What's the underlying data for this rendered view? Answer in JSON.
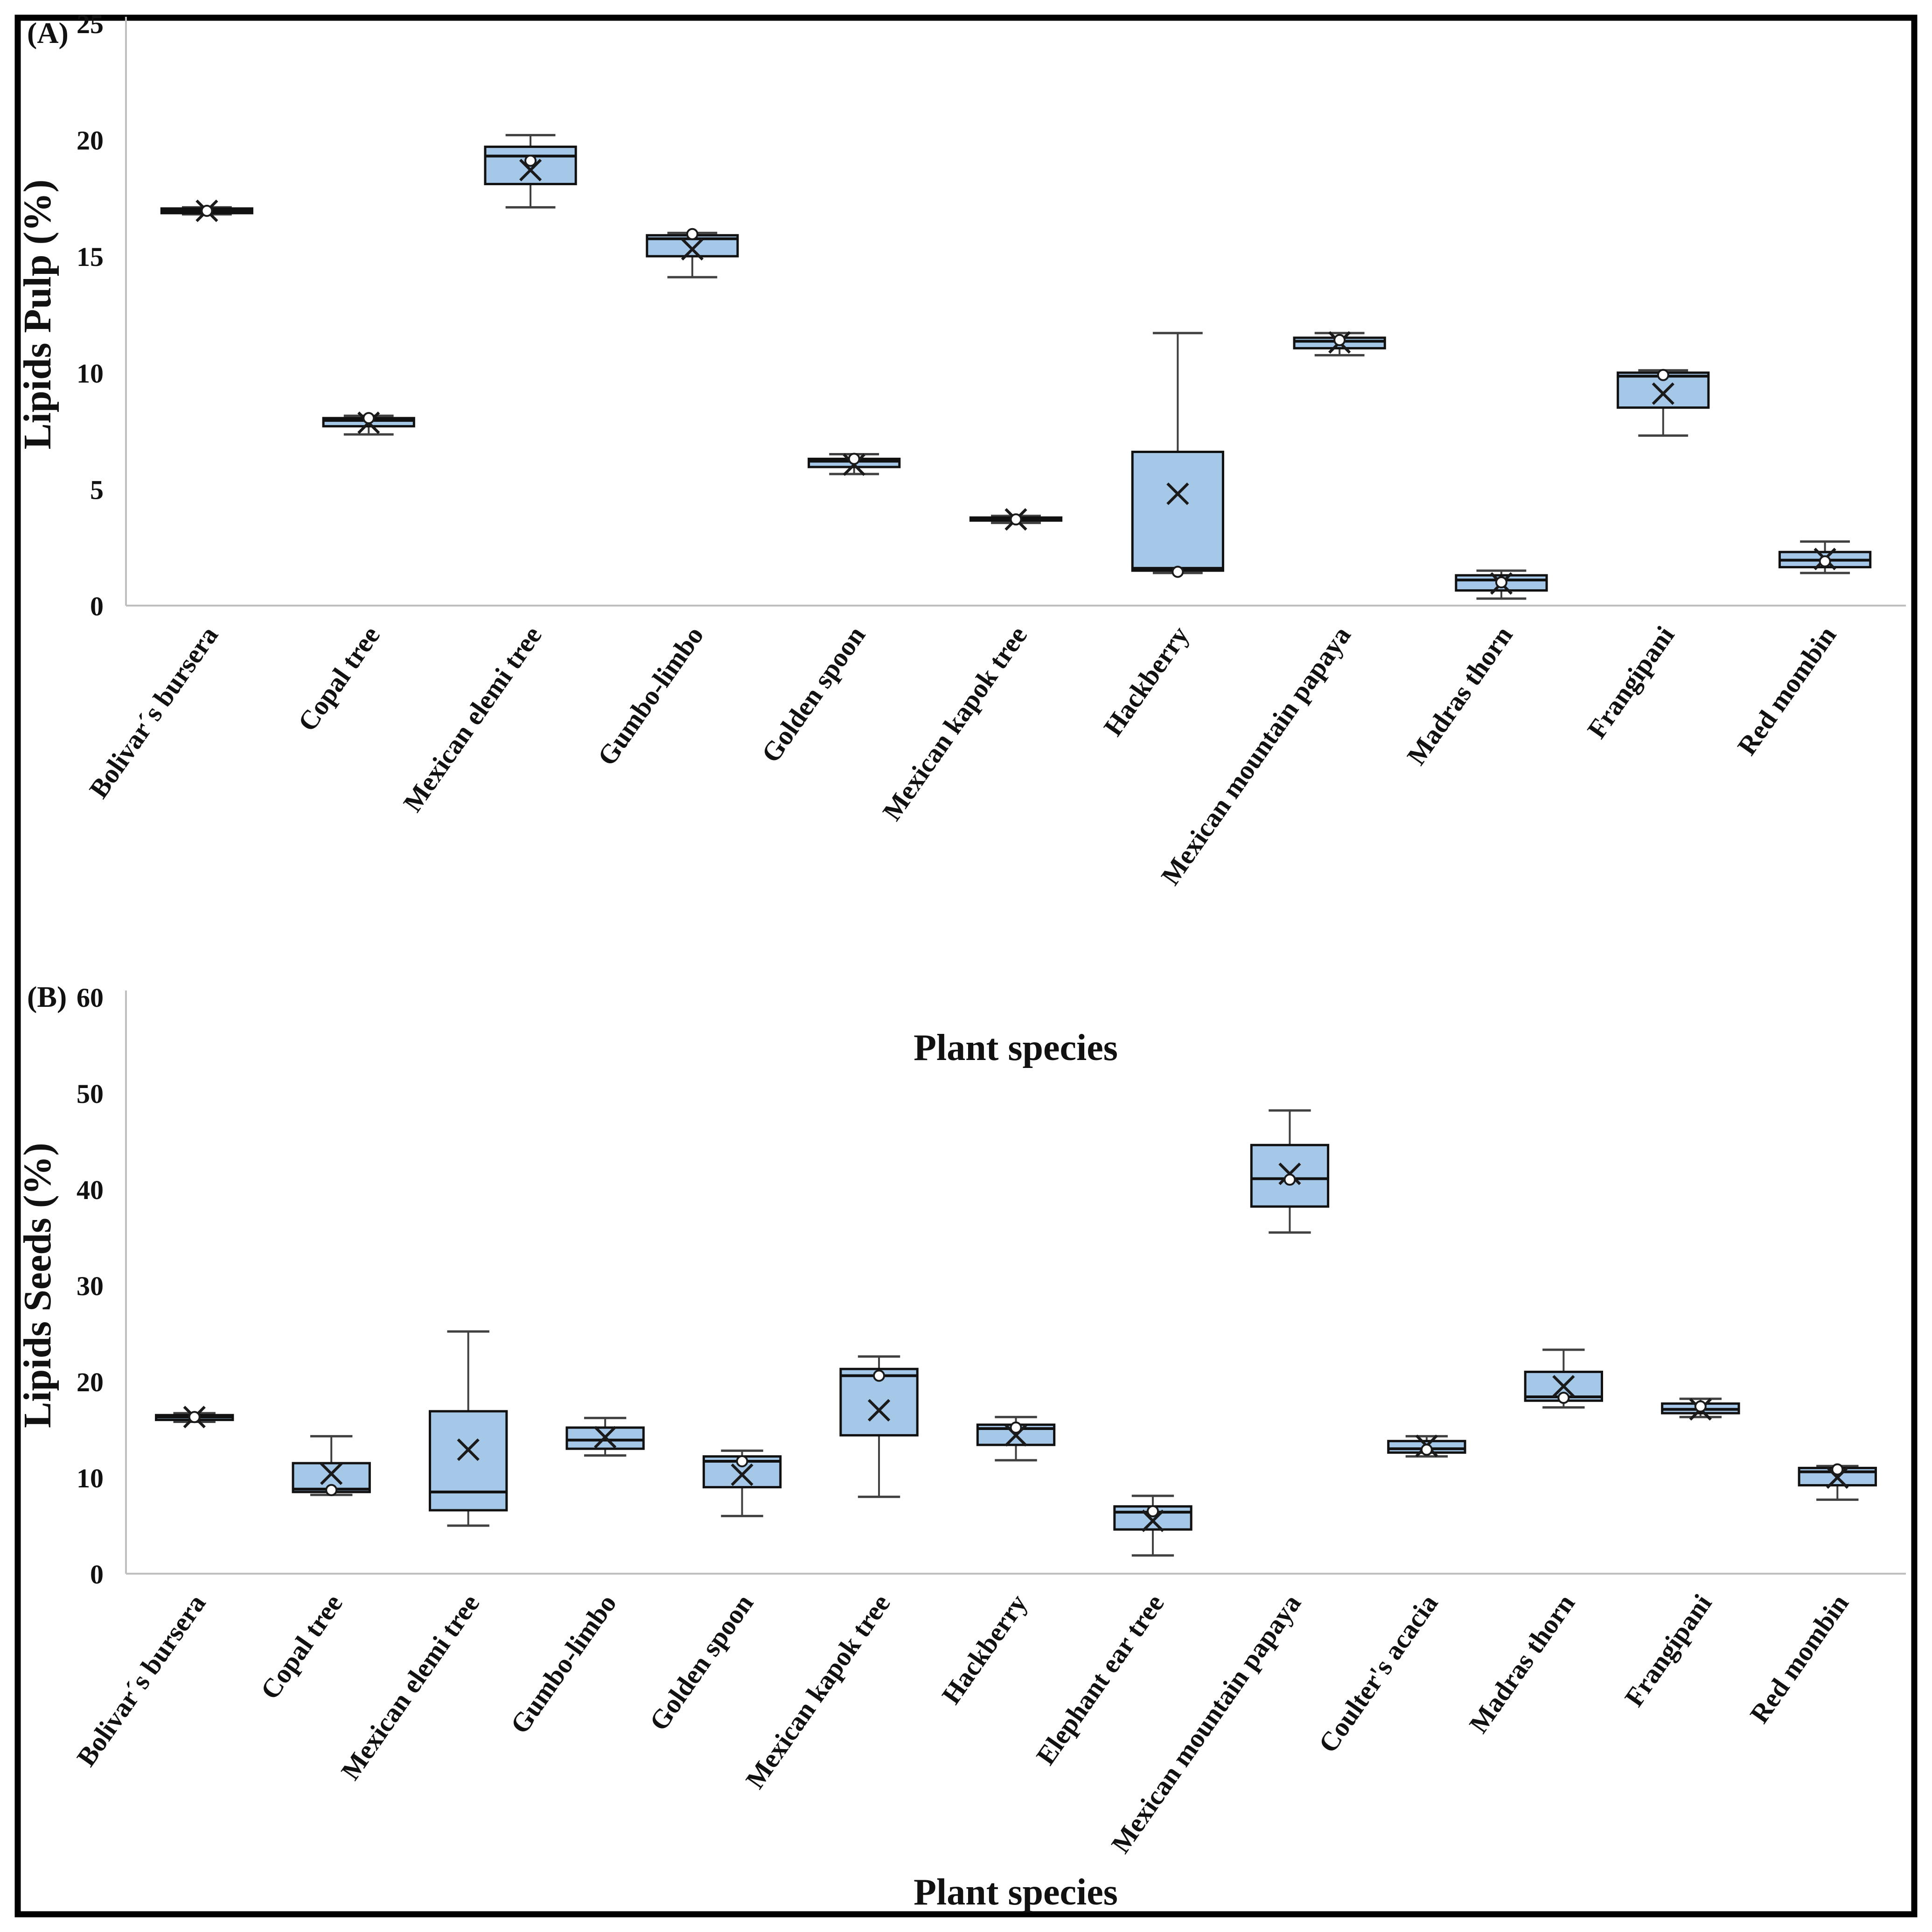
{
  "style": {
    "box_fill": "#A5C8E9",
    "box_stroke": "#111111",
    "median_color": "#111111",
    "whisker_color": "#404040",
    "axis_color": "#BFBFBF",
    "mean_marker_color": "#1a1a1a",
    "outlier_fill": "#ffffff",
    "background": "#ffffff",
    "frame_color": "#000000"
  },
  "chart_data": [
    {
      "type": "box",
      "panel_label": "(A)",
      "ylabel": "Lipids Pulp (%)",
      "xlabel": "Plant species",
      "ylim": [
        0,
        25
      ],
      "yticks": [
        0,
        5,
        10,
        15,
        20,
        25
      ],
      "grid": "off",
      "legend": "none",
      "categories": [
        "Bolivar´s bursera",
        "Copal tree",
        "Mexican elemi tree",
        "Gumbo-limbo",
        "Golden spoon",
        "Mexican kapok tree",
        "Hackberry",
        "Mexican mountain papaya",
        "Madras thorn",
        "Frangipani",
        "Red mombin"
      ],
      "stats": [
        {
          "min": 16.8,
          "q1": 16.85,
          "med": 16.95,
          "q3": 17.05,
          "max": 17.1,
          "mean": 16.95,
          "out": 16.95
        },
        {
          "min": 7.35,
          "q1": 7.7,
          "med": 7.95,
          "q3": 8.05,
          "max": 8.15,
          "mean": 7.85,
          "out": 8.05
        },
        {
          "min": 17.1,
          "q1": 18.1,
          "med": 19.3,
          "q3": 19.7,
          "max": 20.2,
          "mean": 18.7,
          "out": 19.1
        },
        {
          "min": 14.1,
          "q1": 15.0,
          "med": 15.75,
          "q3": 15.9,
          "max": 16.0,
          "mean": 15.3,
          "out": 15.95
        },
        {
          "min": 5.65,
          "q1": 5.95,
          "med": 6.2,
          "q3": 6.3,
          "max": 6.5,
          "mean": 6.05,
          "out": 6.3
        },
        {
          "min": 3.55,
          "q1": 3.65,
          "med": 3.7,
          "q3": 3.78,
          "max": 3.85,
          "mean": 3.7,
          "out": 3.7
        },
        {
          "min": 1.4,
          "q1": 1.5,
          "med": 1.6,
          "q3": 6.6,
          "max": 11.7,
          "mean": 4.8,
          "out": 1.45
        },
        {
          "min": 10.75,
          "q1": 11.05,
          "med": 11.35,
          "q3": 11.5,
          "max": 11.7,
          "mean": 11.3,
          "out": 11.4
        },
        {
          "min": 0.3,
          "q1": 0.65,
          "med": 1.1,
          "q3": 1.3,
          "max": 1.5,
          "mean": 0.95,
          "out": 1.0
        },
        {
          "min": 7.3,
          "q1": 8.5,
          "med": 9.85,
          "q3": 10.0,
          "max": 10.1,
          "mean": 9.1,
          "out": 9.9
        },
        {
          "min": 1.4,
          "q1": 1.65,
          "med": 1.95,
          "q3": 2.3,
          "max": 2.75,
          "mean": 2.0,
          "out": 1.9
        }
      ]
    },
    {
      "type": "box",
      "panel_label": "(B)",
      "ylabel": "Lipids Seeds (%)",
      "xlabel": "Plant species",
      "ylim": [
        0,
        60
      ],
      "yticks": [
        0,
        10,
        20,
        30,
        40,
        50,
        60
      ],
      "grid": "off",
      "legend": "none",
      "categories": [
        "Bolivar´s bursera",
        "Copal tree",
        "Mexican elemi tree",
        "Gumbo-limbo",
        "Golden spoon",
        "Mexican kapok tree",
        "Hackberry",
        "Elephant ear tree",
        "Mexican mountain papaya",
        "Coulter's acacia",
        "Madras thorn",
        "Frangipani",
        "Red mombin"
      ],
      "stats": [
        {
          "min": 15.8,
          "q1": 16.0,
          "med": 16.3,
          "q3": 16.5,
          "max": 16.7,
          "mean": 16.3,
          "out": 16.3
        },
        {
          "min": 8.2,
          "q1": 8.5,
          "med": 8.8,
          "q3": 11.5,
          "max": 14.3,
          "mean": 10.4,
          "out": 8.7
        },
        {
          "min": 5.0,
          "q1": 6.6,
          "med": 8.5,
          "q3": 16.9,
          "max": 25.2,
          "mean": 12.9,
          "out": null
        },
        {
          "min": 12.3,
          "q1": 13.0,
          "med": 13.9,
          "q3": 15.2,
          "max": 16.2,
          "mean": 14.2,
          "out": null
        },
        {
          "min": 6.0,
          "q1": 9.0,
          "med": 11.7,
          "q3": 12.2,
          "max": 12.8,
          "mean": 10.3,
          "out": 11.7
        },
        {
          "min": 8.0,
          "q1": 14.4,
          "med": 20.6,
          "q3": 21.3,
          "max": 22.6,
          "mean": 17.0,
          "out": 20.6
        },
        {
          "min": 11.8,
          "q1": 13.4,
          "med": 15.1,
          "q3": 15.5,
          "max": 16.3,
          "mean": 14.4,
          "out": 15.2
        },
        {
          "min": 1.9,
          "q1": 4.6,
          "med": 6.4,
          "q3": 7.0,
          "max": 8.1,
          "mean": 5.5,
          "out": 6.5
        },
        {
          "min": 35.5,
          "q1": 38.2,
          "med": 41.1,
          "q3": 44.6,
          "max": 48.2,
          "mean": 41.6,
          "out": 41.0
        },
        {
          "min": 12.2,
          "q1": 12.6,
          "med": 13.0,
          "q3": 13.8,
          "max": 14.3,
          "mean": 13.3,
          "out": 12.9
        },
        {
          "min": 17.3,
          "q1": 18.0,
          "med": 18.4,
          "q3": 21.0,
          "max": 23.3,
          "mean": 19.5,
          "out": 18.3
        },
        {
          "min": 16.3,
          "q1": 16.7,
          "med": 17.1,
          "q3": 17.7,
          "max": 18.2,
          "mean": 17.1,
          "out": 17.4
        },
        {
          "min": 7.7,
          "q1": 9.2,
          "med": 10.6,
          "q3": 11.0,
          "max": 11.2,
          "mean": 10.0,
          "out": 10.85
        }
      ]
    }
  ]
}
